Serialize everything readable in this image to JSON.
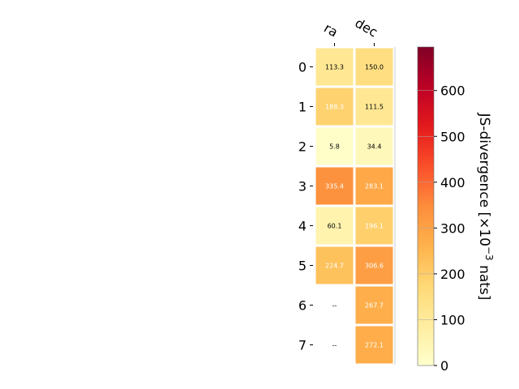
{
  "chart_data": {
    "type": "heatmap",
    "x_categories": [
      "ra",
      "dec"
    ],
    "y_categories": [
      "0",
      "1",
      "2",
      "3",
      "4",
      "5",
      "6",
      "7"
    ],
    "values": [
      [
        113.3,
        150.0
      ],
      [
        188.3,
        111.5
      ],
      [
        5.8,
        34.4
      ],
      [
        335.4,
        283.1
      ],
      [
        60.1,
        196.1
      ],
      [
        224.7,
        306.6
      ],
      [
        null,
        267.7
      ],
      [
        null,
        272.1
      ]
    ],
    "cell_labels": [
      [
        "113.3",
        "150.0"
      ],
      [
        "188.3",
        "111.5"
      ],
      [
        "5.8",
        "34.4"
      ],
      [
        "335.4",
        "283.1"
      ],
      [
        "60.1",
        "196.1"
      ],
      [
        "224.7",
        "306.6"
      ],
      [
        "--",
        "267.7"
      ],
      [
        "--",
        "272.1"
      ]
    ],
    "colorbar": {
      "label_prefix": "JS-divergence [×10",
      "label_exponent": "−3",
      "label_suffix": " nats]",
      "range": [
        0,
        695
      ],
      "ticks": [
        0,
        100,
        200,
        300,
        400,
        500,
        600
      ],
      "colormap": "YlOrRd"
    }
  }
}
